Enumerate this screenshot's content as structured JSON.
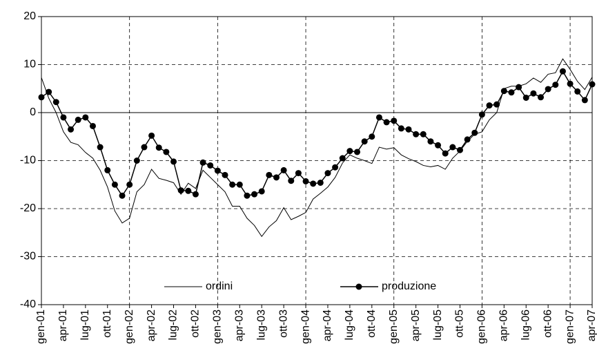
{
  "chart_data": {
    "type": "line",
    "categories": [
      "gen-01",
      null,
      null,
      "apr-01",
      null,
      null,
      "lug-01",
      null,
      null,
      "ott-01",
      null,
      null,
      "gen-02",
      null,
      null,
      "apr-02",
      null,
      null,
      "lug-02",
      null,
      null,
      "ott-02",
      null,
      null,
      "gen-03",
      null,
      null,
      "apr-03",
      null,
      null,
      "lug-03",
      null,
      null,
      "ott-03",
      null,
      null,
      "gen-04",
      null,
      null,
      "apr-04",
      null,
      null,
      "lug-04",
      null,
      null,
      "ott-04",
      null,
      null,
      "gen-05",
      null,
      null,
      "apr-05",
      null,
      null,
      "lug-05",
      null,
      null,
      "ott-05",
      null,
      null,
      "gen-06",
      null,
      null,
      "apr-06",
      null,
      null,
      "lug-06",
      null,
      null,
      "ott-06",
      null,
      null,
      "gen-07",
      null,
      null,
      "apr-07"
    ],
    "series": [
      {
        "name": "ordini",
        "color": "#000000",
        "marker": false,
        "values": [
          7.3,
          3,
          0,
          -4,
          -6.2,
          -6.7,
          -8.3,
          -9.5,
          -12,
          -15.5,
          -20.5,
          -23,
          -22,
          -16.5,
          -15,
          -11.8,
          -13.7,
          -14.1,
          -14.6,
          -17,
          -14.7,
          -15.8,
          -12,
          -13.5,
          -15,
          -16.5,
          -19.5,
          -19.5,
          -22,
          -23.5,
          -25.8,
          -23.8,
          -22.5,
          -19.8,
          -22.3,
          -21.6,
          -20.8,
          -18,
          -16.8,
          -15.5,
          -13.5,
          -10.5,
          -8.8,
          -9.5,
          -10,
          -10.6,
          -7.2,
          -7.6,
          -7.3,
          -8.8,
          -9.6,
          -10.2,
          -11,
          -11.3,
          -11,
          -11.8,
          -9.5,
          -8,
          -6,
          -4.5,
          -4,
          -1.5,
          0,
          5,
          5.5,
          5.5,
          6,
          7.2,
          6.3,
          8,
          8.3,
          11.2,
          9,
          6.5,
          4.8,
          7.4
        ]
      },
      {
        "name": "produzione",
        "color": "#000000",
        "marker": true,
        "values": [
          3.2,
          4.3,
          2.2,
          -1,
          -3.5,
          -1.5,
          -1,
          -2.8,
          -7.2,
          -12,
          -15,
          -17.3,
          -15,
          -10,
          -7.2,
          -4.8,
          -7.3,
          -8.2,
          -10.2,
          -16.2,
          -16.3,
          -17,
          -10.4,
          -11,
          -12.1,
          -13,
          -15,
          -15,
          -17.3,
          -17,
          -16.4,
          -13,
          -13.5,
          -12,
          -14.2,
          -12.6,
          -14.3,
          -14.8,
          -14.6,
          -12.6,
          -11.4,
          -9.5,
          -8,
          -8.2,
          -6,
          -5,
          -1,
          -2,
          -1.7,
          -3.3,
          -3.5,
          -4.5,
          -4.5,
          -6,
          -6.8,
          -8.5,
          -7.2,
          -7.8,
          -5.6,
          -4.2,
          -0.4,
          1.5,
          1.7,
          4.5,
          4.2,
          5.3,
          3.1,
          4,
          3.2,
          4.9,
          5.8,
          8.6,
          6,
          4.4,
          2.6,
          5.9
        ]
      }
    ],
    "ylim": [
      -40,
      20
    ],
    "yticks": [
      -40,
      -30,
      -20,
      -10,
      0,
      10,
      20
    ],
    "grid": true,
    "legend": "bottom"
  }
}
